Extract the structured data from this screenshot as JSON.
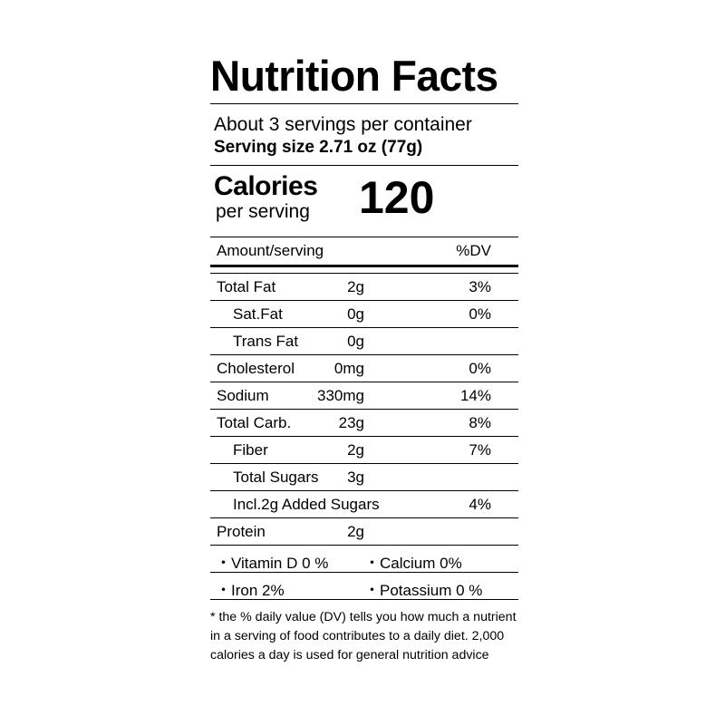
{
  "title": "Nutrition Facts",
  "servings_per_container": "About 3 servings per container",
  "serving_size": "Serving size 2.71 oz (77g)",
  "calories": {
    "label": "Calories",
    "sublabel": "per serving",
    "value": "120"
  },
  "header": {
    "amount": "Amount/serving",
    "dv": "%DV"
  },
  "nutrients": [
    {
      "name": "Total Fat",
      "amount": "2g",
      "dv": "3%",
      "indent": false
    },
    {
      "name": "Sat.Fat",
      "amount": "0g",
      "dv": "0%",
      "indent": true
    },
    {
      "name": "Trans Fat",
      "amount": "0g",
      "dv": "",
      "indent": true
    },
    {
      "name": "Cholesterol",
      "amount": "0mg",
      "dv": "0%",
      "indent": false
    },
    {
      "name": "Sodium",
      "amount": "330mg",
      "dv": "14%",
      "indent": false
    },
    {
      "name": "Total Carb.",
      "amount": "23g",
      "dv": "8%",
      "indent": false
    },
    {
      "name": "Fiber",
      "amount": "2g",
      "dv": "7%",
      "indent": true
    },
    {
      "name": "Total Sugars",
      "amount": "3g",
      "dv": "",
      "indent": true
    },
    {
      "name": "Incl.2g  Added Sugars",
      "amount": "",
      "dv": "4%",
      "indent": true
    },
    {
      "name": "Protein",
      "amount": "2g",
      "dv": "",
      "indent": false
    }
  ],
  "vitamins": [
    [
      "・Vitamin D 0 %",
      "・Calcium 0%"
    ],
    [
      "・Iron  2%",
      "・Potassium 0 %"
    ]
  ],
  "footnote": "* the % daily value (DV) tells you how much a nutrient in a serving of food contributes to a daily diet. 2,000 calories a day is used for general nutrition advice"
}
